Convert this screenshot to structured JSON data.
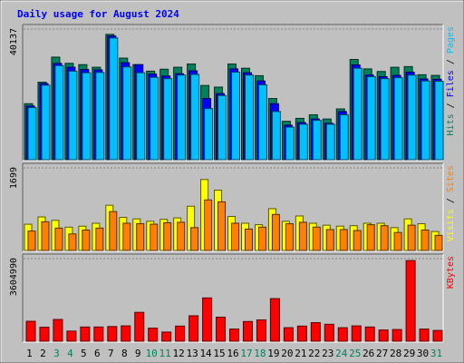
{
  "page": {
    "title": "Daily usage for August 2024"
  },
  "colors": {
    "background": "#c0c0c0",
    "frame": "#e6e6e6",
    "title": "#0000ff",
    "hits": "#00805c",
    "files": "#0000ff",
    "pages": "#00c0ff",
    "visits": "#ffff00",
    "sites": "#ff8000",
    "kbytes": "#ff0000",
    "weekend_label": "#00805c",
    "weekday_label": "#000000"
  },
  "chart_data": [
    {
      "type": "bar",
      "name": "hits-files-pages",
      "y_max_label": "40137",
      "ylim": [
        0,
        40137
      ],
      "legend": [
        {
          "label": "Pages",
          "color": "#00c0ff"
        },
        {
          "label": "Files",
          "color": "#0000ff"
        },
        {
          "label": "Hits",
          "color": "#00805c"
        }
      ],
      "categories": [
        "1",
        "2",
        "3",
        "4",
        "5",
        "6",
        "7",
        "8",
        "9",
        "10",
        "11",
        "12",
        "13",
        "14",
        "15",
        "16",
        "17",
        "18",
        "19",
        "20",
        "21",
        "22",
        "23",
        "24",
        "25",
        "26",
        "27",
        "28",
        "29",
        "30",
        "31"
      ],
      "weekend_days": [
        "3",
        "4",
        "10",
        "11",
        "17",
        "18",
        "24",
        "25",
        "31"
      ],
      "series": [
        {
          "name": "Hits",
          "values": [
            17200,
            23800,
            31500,
            29600,
            29200,
            28400,
            38500,
            31200,
            29200,
            27200,
            27800,
            28400,
            29400,
            22800,
            22300,
            29400,
            28100,
            25800,
            18800,
            11800,
            12700,
            13800,
            12500,
            15600,
            30800,
            27900,
            27100,
            28400,
            28600,
            26100,
            25900
          ]
        },
        {
          "name": "Files",
          "values": [
            16500,
            23400,
            29600,
            28400,
            27700,
            27600,
            38000,
            29800,
            29200,
            26300,
            25700,
            26400,
            27300,
            18800,
            20300,
            27900,
            26700,
            24200,
            17200,
            10600,
            11400,
            12500,
            11200,
            14800,
            29100,
            26000,
            25500,
            25900,
            26900,
            24800,
            24700
          ]
        },
        {
          "name": "Pages",
          "values": [
            16000,
            22900,
            28900,
            27200,
            26700,
            26800,
            37400,
            28500,
            26700,
            25300,
            24900,
            26000,
            26200,
            15700,
            19700,
            26900,
            26000,
            23000,
            14800,
            10000,
            10900,
            12100,
            10900,
            13800,
            28100,
            25500,
            24900,
            25200,
            26000,
            24200,
            24100
          ]
        }
      ]
    },
    {
      "type": "bar",
      "name": "visits-sites",
      "y_max_label": "1699",
      "ylim": [
        0,
        1699
      ],
      "legend": [
        {
          "label": "Sites",
          "color": "#ff8000"
        },
        {
          "label": "Visits",
          "color": "#ffff00"
        }
      ],
      "categories": [
        "1",
        "2",
        "3",
        "4",
        "5",
        "6",
        "7",
        "8",
        "9",
        "10",
        "11",
        "12",
        "13",
        "14",
        "15",
        "16",
        "17",
        "18",
        "19",
        "20",
        "21",
        "22",
        "23",
        "24",
        "25",
        "26",
        "27",
        "28",
        "29",
        "30",
        "31"
      ],
      "series": [
        {
          "name": "Visits",
          "values": [
            540,
            690,
            620,
            480,
            500,
            560,
            930,
            680,
            650,
            600,
            640,
            670,
            910,
            1460,
            1240,
            700,
            560,
            530,
            860,
            600,
            710,
            560,
            520,
            500,
            510,
            560,
            560,
            470,
            650,
            550,
            390
          ]
        },
        {
          "name": "Sites",
          "values": [
            400,
            590,
            460,
            340,
            420,
            460,
            800,
            560,
            550,
            540,
            570,
            580,
            470,
            1040,
            1000,
            560,
            440,
            480,
            740,
            550,
            580,
            480,
            430,
            430,
            410,
            530,
            510,
            370,
            520,
            420,
            310
          ]
        }
      ]
    },
    {
      "type": "bar",
      "name": "kbytes",
      "y_max_label": "3604990",
      "ylim": [
        0,
        3604990
      ],
      "legend": [
        {
          "label": "KBytes",
          "color": "#ff0000"
        }
      ],
      "categories": [
        "1",
        "2",
        "3",
        "4",
        "5",
        "6",
        "7",
        "8",
        "9",
        "10",
        "11",
        "12",
        "13",
        "14",
        "15",
        "16",
        "17",
        "18",
        "19",
        "20",
        "21",
        "22",
        "23",
        "24",
        "25",
        "26",
        "27",
        "28",
        "29",
        "30",
        "31"
      ],
      "series": [
        {
          "name": "KBytes",
          "values": [
            870000,
            610000,
            950000,
            440000,
            620000,
            620000,
            640000,
            670000,
            1260000,
            570000,
            400000,
            660000,
            1110000,
            1890000,
            1050000,
            530000,
            860000,
            930000,
            1860000,
            590000,
            660000,
            810000,
            740000,
            590000,
            670000,
            620000,
            490000,
            510000,
            3520000,
            530000,
            470000
          ]
        }
      ]
    }
  ]
}
